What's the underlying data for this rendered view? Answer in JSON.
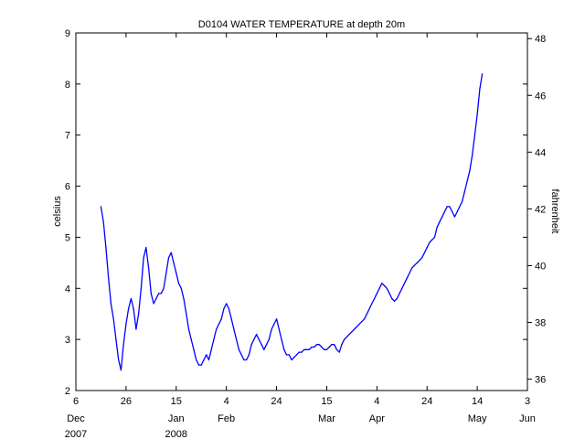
{
  "chart_data": {
    "type": "line",
    "title": "D0104 WATER TEMPERATURE at depth 20m",
    "ylabel": "celsius",
    "y2label": "fahrenheit",
    "ylim": [
      2,
      9
    ],
    "y2lim": [
      35.6,
      48.2
    ],
    "y2ticks": [
      "36",
      "38",
      "40",
      "42",
      "44",
      "46",
      "48"
    ],
    "xlim": [
      "2007-12-06",
      "2008-06-03"
    ],
    "yticks": [
      "2",
      "3",
      "4",
      "5",
      "6",
      "7",
      "8",
      "9"
    ],
    "xticks": [
      {
        "date": "2007-12-06",
        "label": "6",
        "month": "Dec",
        "year": "2007"
      },
      {
        "date": "2007-12-26",
        "label": "26",
        "month": "",
        "year": ""
      },
      {
        "date": "2008-01-15",
        "label": "15",
        "month": "Jan",
        "year": "2008"
      },
      {
        "date": "2008-02-04",
        "label": "4",
        "month": "Feb",
        "year": ""
      },
      {
        "date": "2008-02-24",
        "label": "24",
        "month": "",
        "year": ""
      },
      {
        "date": "2008-03-15",
        "label": "15",
        "month": "Mar",
        "year": ""
      },
      {
        "date": "2008-04-04",
        "label": "4",
        "month": "Apr",
        "year": ""
      },
      {
        "date": "2008-04-24",
        "label": "24",
        "month": "",
        "year": ""
      },
      {
        "date": "2008-05-14",
        "label": "14",
        "month": "May",
        "year": ""
      },
      {
        "date": "2008-06-03",
        "label": "3",
        "month": "Jun",
        "year": ""
      }
    ],
    "grid": false,
    "line_color": "#0000ff",
    "series": [
      {
        "name": "",
        "x": [
          "2007-12-16",
          "2007-12-17",
          "2007-12-18",
          "2007-12-19",
          "2007-12-20",
          "2007-12-21",
          "2007-12-22",
          "2007-12-23",
          "2007-12-24",
          "2007-12-25",
          "2007-12-26",
          "2007-12-27",
          "2007-12-28",
          "2007-12-29",
          "2007-12-30",
          "2007-12-31",
          "2008-01-01",
          "2008-01-02",
          "2008-01-03",
          "2008-01-04",
          "2008-01-05",
          "2008-01-06",
          "2008-01-07",
          "2008-01-08",
          "2008-01-09",
          "2008-01-10",
          "2008-01-11",
          "2008-01-12",
          "2008-01-13",
          "2008-01-14",
          "2008-01-15",
          "2008-01-16",
          "2008-01-17",
          "2008-01-18",
          "2008-01-19",
          "2008-01-20",
          "2008-01-21",
          "2008-01-22",
          "2008-01-23",
          "2008-01-24",
          "2008-01-25",
          "2008-01-26",
          "2008-01-27",
          "2008-01-28",
          "2008-01-29",
          "2008-01-30",
          "2008-01-31",
          "2008-02-01",
          "2008-02-02",
          "2008-02-03",
          "2008-02-04",
          "2008-02-05",
          "2008-02-06",
          "2008-02-07",
          "2008-02-08",
          "2008-02-09",
          "2008-02-10",
          "2008-02-11",
          "2008-02-12",
          "2008-02-13",
          "2008-02-14",
          "2008-02-15",
          "2008-02-16",
          "2008-02-17",
          "2008-02-18",
          "2008-02-19",
          "2008-02-20",
          "2008-02-21",
          "2008-02-22",
          "2008-02-23",
          "2008-02-24",
          "2008-02-25",
          "2008-02-26",
          "2008-02-27",
          "2008-02-28",
          "2008-02-29",
          "2008-03-01",
          "2008-03-02",
          "2008-03-03",
          "2008-03-04",
          "2008-03-05",
          "2008-03-06",
          "2008-03-07",
          "2008-03-08",
          "2008-03-09",
          "2008-03-10",
          "2008-03-11",
          "2008-03-12",
          "2008-03-13",
          "2008-03-14",
          "2008-03-15",
          "2008-03-16",
          "2008-03-17",
          "2008-03-18",
          "2008-03-19",
          "2008-03-20",
          "2008-03-21",
          "2008-03-22",
          "2008-03-23",
          "2008-03-24",
          "2008-03-25",
          "2008-03-26",
          "2008-03-27",
          "2008-03-28",
          "2008-03-29",
          "2008-03-30",
          "2008-03-31",
          "2008-04-01",
          "2008-04-02",
          "2008-04-03",
          "2008-04-04",
          "2008-04-05",
          "2008-04-06",
          "2008-04-07",
          "2008-04-08",
          "2008-04-09",
          "2008-04-10",
          "2008-04-11",
          "2008-04-12",
          "2008-04-13",
          "2008-04-14",
          "2008-04-15",
          "2008-04-16",
          "2008-04-17",
          "2008-04-18",
          "2008-04-19",
          "2008-04-20",
          "2008-04-21",
          "2008-04-22",
          "2008-04-23",
          "2008-04-24",
          "2008-04-25",
          "2008-04-26",
          "2008-04-27",
          "2008-04-28",
          "2008-04-29",
          "2008-04-30",
          "2008-05-01",
          "2008-05-02",
          "2008-05-03",
          "2008-05-04",
          "2008-05-05",
          "2008-05-06",
          "2008-05-07",
          "2008-05-08",
          "2008-05-09",
          "2008-05-10",
          "2008-05-11",
          "2008-05-12",
          "2008-05-13",
          "2008-05-14",
          "2008-05-15",
          "2008-05-16"
        ],
        "values": [
          5.6,
          5.3,
          4.8,
          4.2,
          3.7,
          3.4,
          3.0,
          2.6,
          2.4,
          2.9,
          3.3,
          3.6,
          3.8,
          3.6,
          3.2,
          3.5,
          4.0,
          4.6,
          4.8,
          4.4,
          3.9,
          3.7,
          3.8,
          3.9,
          3.9,
          4.0,
          4.3,
          4.6,
          4.7,
          4.5,
          4.3,
          4.1,
          4.0,
          3.8,
          3.5,
          3.2,
          3.0,
          2.8,
          2.6,
          2.5,
          2.5,
          2.6,
          2.7,
          2.6,
          2.8,
          3.0,
          3.2,
          3.3,
          3.4,
          3.6,
          3.7,
          3.6,
          3.4,
          3.2,
          3.0,
          2.8,
          2.7,
          2.6,
          2.6,
          2.7,
          2.9,
          3.0,
          3.1,
          3.0,
          2.9,
          2.8,
          2.9,
          3.0,
          3.2,
          3.3,
          3.4,
          3.2,
          3.0,
          2.8,
          2.7,
          2.7,
          2.6,
          2.65,
          2.7,
          2.75,
          2.75,
          2.8,
          2.8,
          2.8,
          2.85,
          2.85,
          2.9,
          2.9,
          2.85,
          2.8,
          2.8,
          2.85,
          2.9,
          2.9,
          2.8,
          2.75,
          2.9,
          3.0,
          3.05,
          3.1,
          3.15,
          3.2,
          3.25,
          3.3,
          3.35,
          3.4,
          3.5,
          3.6,
          3.7,
          3.8,
          3.9,
          4.0,
          4.1,
          4.05,
          4.0,
          3.9,
          3.8,
          3.75,
          3.8,
          3.9,
          4.0,
          4.1,
          4.2,
          4.3,
          4.4,
          4.45,
          4.5,
          4.55,
          4.6,
          4.7,
          4.8,
          4.9,
          4.95,
          5.0,
          5.2,
          5.3,
          5.4,
          5.5,
          5.6,
          5.6,
          5.5,
          5.4,
          5.5,
          5.6,
          5.7,
          5.9,
          6.1,
          6.3,
          6.6,
          7.0,
          7.4,
          7.9,
          8.2
        ]
      }
    ]
  }
}
